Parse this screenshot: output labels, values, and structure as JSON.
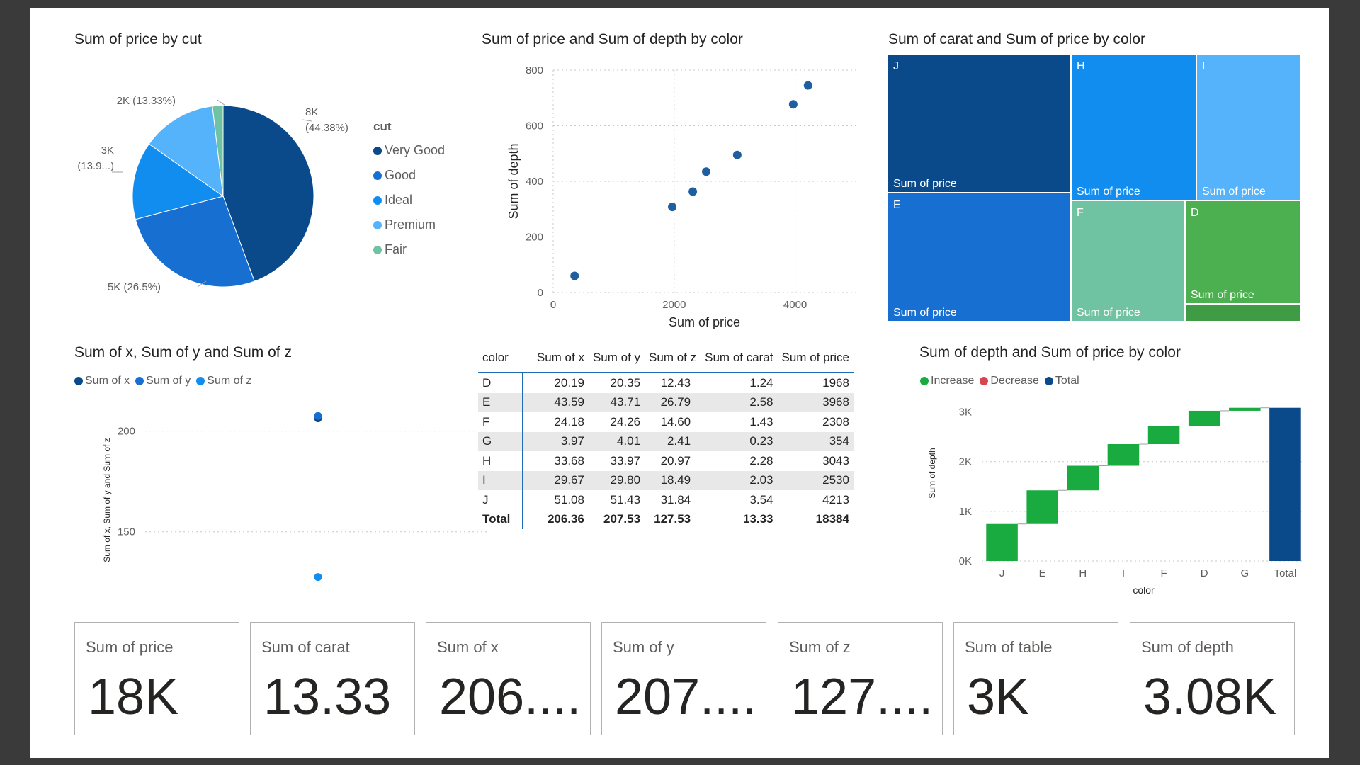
{
  "pie": {
    "title": "Sum of price by cut",
    "legend_title": "cut",
    "slices": [
      {
        "name": "Very Good",
        "value": 44.38,
        "label": "8K",
        "label2": "(44.38%)",
        "color": "#0b4a8a"
      },
      {
        "name": "Good",
        "value": 26.5,
        "label": "5K (26.5%)",
        "label2": "",
        "color": "#1770d1"
      },
      {
        "name": "Ideal",
        "value": 13.9,
        "label": "3K",
        "label2": "(13.9...)",
        "color": "#118df0"
      },
      {
        "name": "Premium",
        "value": 13.33,
        "label": "2K (13.33%)",
        "label2": "",
        "color": "#54b3fa"
      },
      {
        "name": "Fair",
        "value": 1.89,
        "label": "",
        "label2": "",
        "color": "#6fc3a2"
      }
    ]
  },
  "scatter1": {
    "title": "Sum of price and Sum of depth by color",
    "chart_data": {
      "type": "scatter",
      "xlabel": "Sum of price",
      "ylabel": "Sum of depth",
      "xlim": [
        0,
        5000
      ],
      "ylim": [
        0,
        800
      ],
      "x_ticks": [
        "0",
        "2000",
        "4000"
      ],
      "y_ticks": [
        "0",
        "200",
        "400",
        "600",
        "800"
      ],
      "points": [
        {
          "x": 354,
          "y": 60
        },
        {
          "x": 1968,
          "y": 308
        },
        {
          "x": 2308,
          "y": 363
        },
        {
          "x": 2530,
          "y": 435
        },
        {
          "x": 3043,
          "y": 495
        },
        {
          "x": 3968,
          "y": 677
        },
        {
          "x": 4213,
          "y": 745
        }
      ],
      "color": "#1f5fa0"
    }
  },
  "treemap": {
    "title": "Sum of carat and Sum of price by color",
    "sublabel": "Sum of price",
    "tiles": [
      {
        "name": "J",
        "color": "#0b4a8a"
      },
      {
        "name": "H",
        "color": "#118df0"
      },
      {
        "name": "I",
        "color": "#54b3fa"
      },
      {
        "name": "E",
        "color": "#1770d1"
      },
      {
        "name": "F",
        "color": "#6fc3a2"
      },
      {
        "name": "D",
        "color": "#4caf50"
      }
    ]
  },
  "scatter2": {
    "title": "Sum of x, Sum of y and Sum of z",
    "legend": [
      {
        "name": "Sum of x",
        "color": "#0b4a8a"
      },
      {
        "name": "Sum of y",
        "color": "#1770d1"
      },
      {
        "name": "Sum of z",
        "color": "#118df0"
      }
    ],
    "chart_data": {
      "type": "scatter",
      "ylabel": "Sum of x, Sum of y and Sum of z",
      "y_ticks": [
        "150",
        "200"
      ],
      "ylim": [
        120,
        215
      ],
      "series": [
        {
          "name": "Sum of x",
          "values": [
            206.36
          ]
        },
        {
          "name": "Sum of y",
          "values": [
            207.53
          ]
        },
        {
          "name": "Sum of z",
          "values": [
            127.53
          ]
        }
      ]
    }
  },
  "matrix": {
    "headers": [
      "color",
      "Sum of x",
      "Sum of y",
      "Sum of z",
      "Sum of carat",
      "Sum of price"
    ],
    "rows": [
      [
        "D",
        "20.19",
        "20.35",
        "12.43",
        "1.24",
        "1968"
      ],
      [
        "E",
        "43.59",
        "43.71",
        "26.79",
        "2.58",
        "3968"
      ],
      [
        "F",
        "24.18",
        "24.26",
        "14.60",
        "1.43",
        "2308"
      ],
      [
        "G",
        "3.97",
        "4.01",
        "2.41",
        "0.23",
        "354"
      ],
      [
        "H",
        "33.68",
        "33.97",
        "20.97",
        "2.28",
        "3043"
      ],
      [
        "I",
        "29.67",
        "29.80",
        "18.49",
        "2.03",
        "2530"
      ],
      [
        "J",
        "51.08",
        "51.43",
        "31.84",
        "3.54",
        "4213"
      ]
    ],
    "total": [
      "Total",
      "206.36",
      "207.53",
      "127.53",
      "13.33",
      "18384"
    ]
  },
  "waterfall": {
    "title": "Sum of depth and Sum of price by color",
    "legend": [
      {
        "name": "Increase",
        "color": "#1aab40"
      },
      {
        "name": "Decrease",
        "color": "#d64550"
      },
      {
        "name": "Total",
        "color": "#0b4a8a"
      }
    ],
    "chart_data": {
      "type": "bar",
      "subtype": "waterfall",
      "xlabel": "color",
      "ylabel": "Sum of depth",
      "y_ticks": [
        "0K",
        "1K",
        "2K",
        "3K"
      ],
      "ylim": [
        0,
        3250
      ],
      "categories": [
        "J",
        "E",
        "H",
        "I",
        "F",
        "D",
        "G",
        "Total"
      ],
      "values": [
        745,
        677,
        495,
        435,
        363,
        308,
        60,
        3083
      ]
    }
  },
  "cards": [
    {
      "label": "Sum of price",
      "value": "18K"
    },
    {
      "label": "Sum of carat",
      "value": "13.33"
    },
    {
      "label": "Sum of x",
      "value": "206...."
    },
    {
      "label": "Sum of y",
      "value": "207...."
    },
    {
      "label": "Sum of z",
      "value": "127...."
    },
    {
      "label": "Sum of table",
      "value": "3K"
    },
    {
      "label": "Sum of depth",
      "value": "3.08K"
    }
  ]
}
